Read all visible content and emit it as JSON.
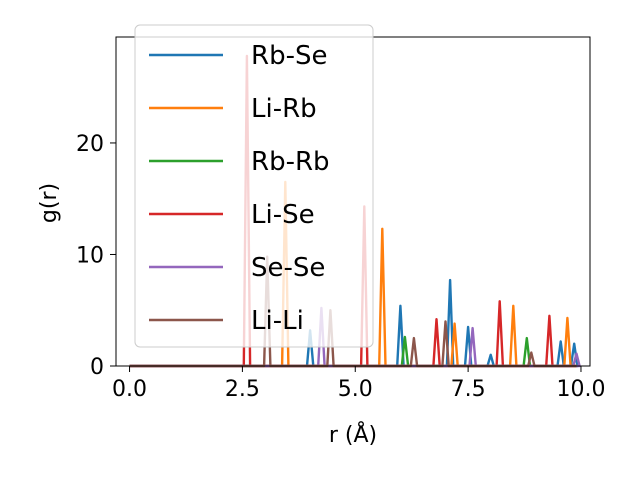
{
  "chart_data": {
    "type": "line",
    "xlabel": "r (Å)",
    "ylabel": "g(r)",
    "xlim": [
      -0.3,
      10.2
    ],
    "ylim": [
      0,
      29.5
    ],
    "xticks": [
      {
        "value": 0.0,
        "label": "0.0"
      },
      {
        "value": 2.5,
        "label": "2.5"
      },
      {
        "value": 5.0,
        "label": "5.0"
      },
      {
        "value": 7.5,
        "label": "7.5"
      },
      {
        "value": 10.0,
        "label": "10.0"
      }
    ],
    "yticks": [
      {
        "value": 0,
        "label": "0"
      },
      {
        "value": 10,
        "label": "10"
      },
      {
        "value": 20,
        "label": "20"
      }
    ],
    "grid": false,
    "legend_position": "upper-left",
    "series": [
      {
        "name": "Rb-Se",
        "color": "#1f77b4",
        "peaks": [
          [
            4.0,
            3.2
          ],
          [
            6.0,
            5.4
          ],
          [
            7.1,
            7.7
          ],
          [
            7.5,
            3.5
          ],
          [
            8.0,
            1.0
          ],
          [
            9.55,
            2.2
          ],
          [
            9.85,
            2.0
          ]
        ]
      },
      {
        "name": "Li-Rb",
        "color": "#ff7f0e",
        "peaks": [
          [
            3.45,
            16.5
          ],
          [
            5.6,
            12.3
          ],
          [
            7.2,
            3.8
          ],
          [
            8.5,
            5.4
          ],
          [
            9.7,
            4.3
          ]
        ]
      },
      {
        "name": "Rb-Rb",
        "color": "#2ca02c",
        "peaks": [
          [
            6.1,
            2.6
          ],
          [
            8.8,
            2.5
          ]
        ]
      },
      {
        "name": "Li-Se",
        "color": "#d62728",
        "peaks": [
          [
            2.6,
            27.8
          ],
          [
            5.2,
            14.3
          ],
          [
            6.8,
            4.2
          ],
          [
            8.2,
            5.8
          ],
          [
            9.3,
            4.5
          ]
        ]
      },
      {
        "name": "Se-Se",
        "color": "#9467bd",
        "peaks": [
          [
            4.25,
            5.2
          ],
          [
            7.6,
            3.4
          ],
          [
            9.9,
            1.1
          ]
        ]
      },
      {
        "name": "Li-Li",
        "color": "#8c564b",
        "peaks": [
          [
            3.05,
            9.8
          ],
          [
            4.45,
            5.0
          ],
          [
            6.3,
            2.5
          ],
          [
            7.0,
            4.0
          ],
          [
            8.9,
            1.2
          ]
        ]
      }
    ]
  }
}
